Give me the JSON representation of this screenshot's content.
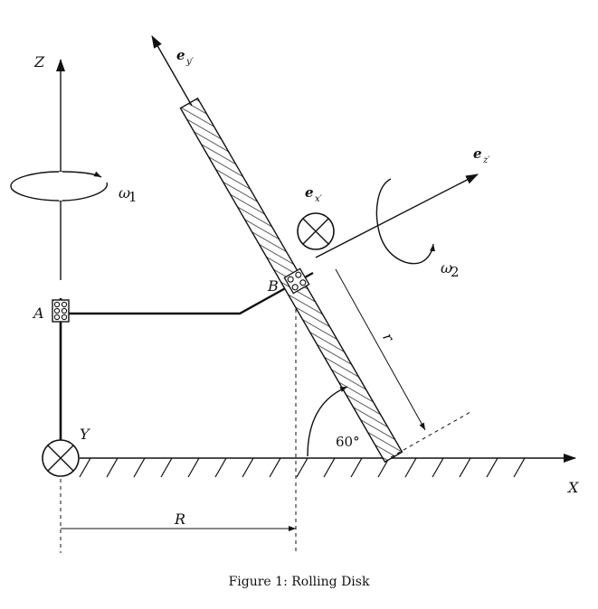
{
  "figure": {
    "caption": "Figure 1: Rolling Disk",
    "axes": {
      "z": "Z",
      "x": "X",
      "y": "Y"
    },
    "points": {
      "a": "A",
      "b": "B"
    },
    "vectors": {
      "ex": "e",
      "ex_sub": "x′",
      "ey": "e",
      "ey_sub": "y′",
      "ez": "e",
      "ez_sub": "z′"
    },
    "rates": {
      "w1": "ω",
      "w1_sub": "1",
      "w2": "ω",
      "w2_sub": "2"
    },
    "dims": {
      "radius_big": "R",
      "radius_small": "r",
      "angle": "60°"
    }
  }
}
